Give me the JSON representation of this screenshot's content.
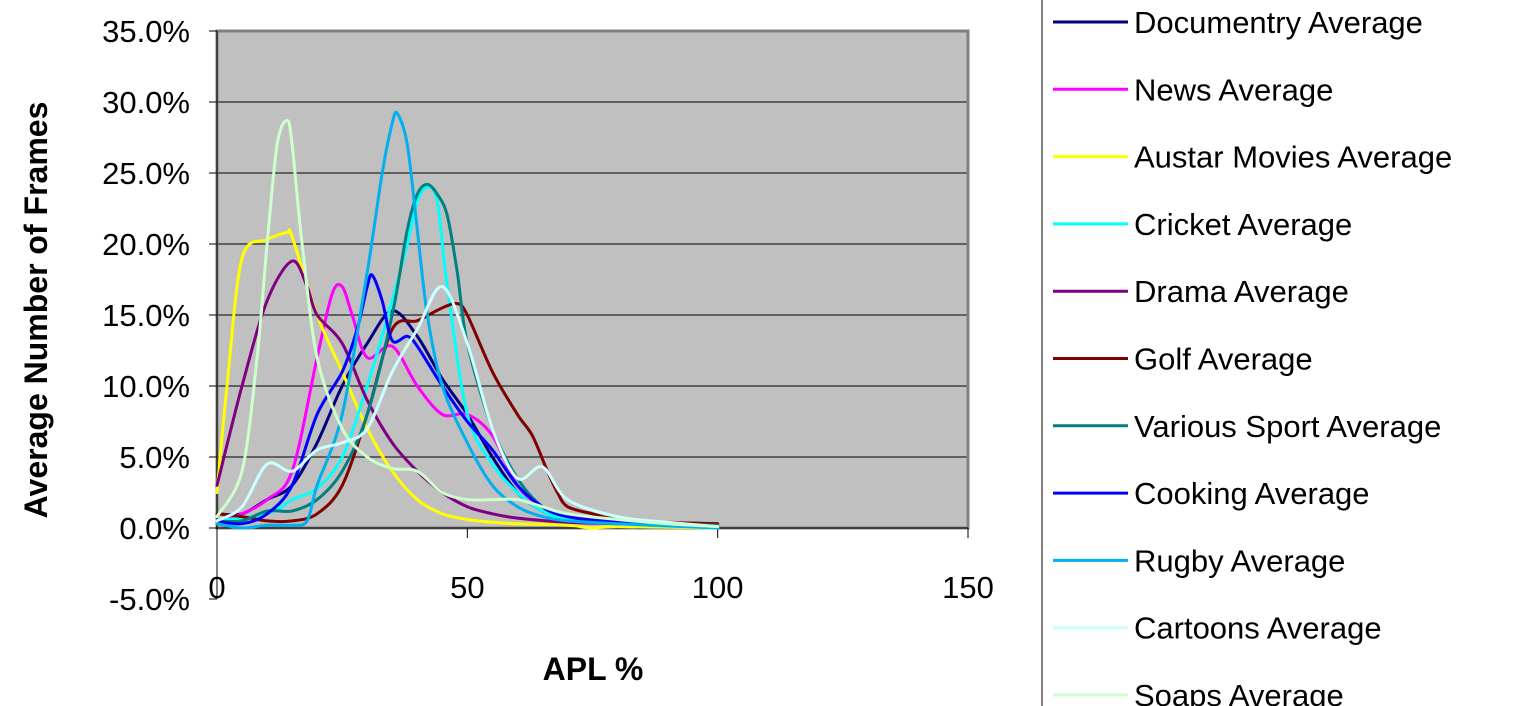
{
  "chart_data": {
    "type": "line",
    "title": "",
    "xlabel": "APL %",
    "ylabel": "Average Number of Frames",
    "xlim": [
      0,
      150
    ],
    "ylim": [
      -5,
      35
    ],
    "x_ticks": [
      0,
      50,
      100,
      150
    ],
    "x_tick_labels": [
      "0",
      "50",
      "100",
      "150"
    ],
    "y_ticks": [
      -5,
      0,
      5,
      10,
      15,
      20,
      25,
      30,
      35
    ],
    "y_tick_labels": [
      "-5.0%",
      "0.0%",
      "5.0%",
      "10.0%",
      "15.0%",
      "20.0%",
      "25.0%",
      "30.0%",
      "35.0%"
    ],
    "grid": "horizontal",
    "legend_placement": "right",
    "background_color": "#c0c0c0",
    "series": [
      {
        "name": "Documentry Average",
        "color": "#000080",
        "points": [
          [
            0,
            1
          ],
          [
            5,
            1
          ],
          [
            10,
            2
          ],
          [
            15,
            3
          ],
          [
            20,
            6
          ],
          [
            25,
            10
          ],
          [
            30,
            13
          ],
          [
            35,
            15.3
          ],
          [
            40,
            13.5
          ],
          [
            45,
            10.5
          ],
          [
            50,
            8
          ],
          [
            55,
            5
          ],
          [
            60,
            2.5
          ],
          [
            65,
            1.2
          ],
          [
            70,
            0.6
          ],
          [
            80,
            0.3
          ],
          [
            90,
            0.2
          ],
          [
            100,
            0.1
          ]
        ]
      },
      {
        "name": "News Average",
        "color": "#ff00ff",
        "points": [
          [
            0,
            0.5
          ],
          [
            5,
            1
          ],
          [
            10,
            2
          ],
          [
            15,
            4
          ],
          [
            20,
            12
          ],
          [
            23,
            16.5
          ],
          [
            25,
            17
          ],
          [
            27,
            15
          ],
          [
            30,
            12
          ],
          [
            35,
            12.8
          ],
          [
            40,
            10
          ],
          [
            45,
            8
          ],
          [
            50,
            8
          ],
          [
            55,
            6.5
          ],
          [
            60,
            3
          ],
          [
            65,
            1.5
          ],
          [
            70,
            0.8
          ],
          [
            80,
            0.4
          ],
          [
            90,
            0.2
          ],
          [
            100,
            0.1
          ]
        ]
      },
      {
        "name": "Austar Movies Average",
        "color": "#ffff00",
        "points": [
          [
            0,
            2.5
          ],
          [
            2,
            10
          ],
          [
            5,
            19
          ],
          [
            10,
            20.3
          ],
          [
            14,
            20.8
          ],
          [
            15,
            20.5
          ],
          [
            20,
            15
          ],
          [
            25,
            11
          ],
          [
            30,
            7
          ],
          [
            35,
            4
          ],
          [
            40,
            2
          ],
          [
            45,
            1
          ],
          [
            50,
            0.6
          ],
          [
            55,
            0.4
          ],
          [
            60,
            0.3
          ],
          [
            70,
            0.2
          ],
          [
            75,
            0
          ],
          [
            80,
            0.1
          ],
          [
            100,
            0
          ]
        ]
      },
      {
        "name": "Cricket Average",
        "color": "#00ffff",
        "points": [
          [
            0,
            0.5
          ],
          [
            10,
            1
          ],
          [
            15,
            2
          ],
          [
            20,
            2.8
          ],
          [
            25,
            5
          ],
          [
            30,
            10
          ],
          [
            35,
            16
          ],
          [
            38,
            20
          ],
          [
            40,
            23
          ],
          [
            42,
            24
          ],
          [
            44,
            23
          ],
          [
            46,
            17
          ],
          [
            50,
            8
          ],
          [
            55,
            4.5
          ],
          [
            60,
            2.5
          ],
          [
            65,
            1.2
          ],
          [
            70,
            0.6
          ],
          [
            80,
            0.3
          ],
          [
            100,
            0
          ]
        ]
      },
      {
        "name": "Drama Average",
        "color": "#800080",
        "points": [
          [
            0,
            3
          ],
          [
            5,
            10
          ],
          [
            10,
            16
          ],
          [
            15,
            18.8
          ],
          [
            18,
            17
          ],
          [
            20,
            15
          ],
          [
            25,
            13
          ],
          [
            30,
            9
          ],
          [
            35,
            6
          ],
          [
            40,
            4
          ],
          [
            45,
            2.5
          ],
          [
            50,
            1.5
          ],
          [
            55,
            1
          ],
          [
            60,
            0.7
          ],
          [
            70,
            0.4
          ],
          [
            80,
            0.3
          ],
          [
            100,
            0.2
          ]
        ]
      },
      {
        "name": "Golf Average",
        "color": "#800000",
        "points": [
          [
            0,
            1
          ],
          [
            5,
            0.8
          ],
          [
            10,
            0.5
          ],
          [
            15,
            0.5
          ],
          [
            20,
            1
          ],
          [
            25,
            3
          ],
          [
            30,
            8
          ],
          [
            35,
            14
          ],
          [
            40,
            14.6
          ],
          [
            45,
            15.5
          ],
          [
            48,
            15.8
          ],
          [
            50,
            15
          ],
          [
            55,
            11
          ],
          [
            60,
            8
          ],
          [
            63,
            6.5
          ],
          [
            66,
            4
          ],
          [
            68,
            2.5
          ],
          [
            70,
            1.5
          ],
          [
            75,
            1
          ],
          [
            80,
            0.6
          ],
          [
            90,
            0.4
          ],
          [
            100,
            0.3
          ]
        ]
      },
      {
        "name": "Various Sport Average",
        "color": "#008080",
        "points": [
          [
            0,
            0.5
          ],
          [
            5,
            0.5
          ],
          [
            10,
            1.2
          ],
          [
            15,
            1.2
          ],
          [
            20,
            2
          ],
          [
            25,
            4
          ],
          [
            30,
            8
          ],
          [
            35,
            15
          ],
          [
            38,
            21
          ],
          [
            40,
            23.5
          ],
          [
            42,
            24.2
          ],
          [
            44,
            23.5
          ],
          [
            46,
            22
          ],
          [
            48,
            18
          ],
          [
            50,
            13
          ],
          [
            55,
            7
          ],
          [
            60,
            3.5
          ],
          [
            65,
            1.5
          ],
          [
            70,
            0.8
          ],
          [
            80,
            0.4
          ],
          [
            100,
            0.2
          ]
        ]
      },
      {
        "name": "Cooking Average",
        "color": "#0000ff",
        "points": [
          [
            0,
            0.5
          ],
          [
            5,
            0.3
          ],
          [
            10,
            1
          ],
          [
            15,
            3
          ],
          [
            20,
            8
          ],
          [
            25,
            11
          ],
          [
            28,
            14
          ],
          [
            30,
            17
          ],
          [
            31,
            17.8
          ],
          [
            33,
            16
          ],
          [
            35,
            13.2
          ],
          [
            38,
            13.5
          ],
          [
            40,
            12.8
          ],
          [
            45,
            10
          ],
          [
            50,
            7.5
          ],
          [
            55,
            5.5
          ],
          [
            60,
            3
          ],
          [
            65,
            1.5
          ],
          [
            70,
            0.8
          ],
          [
            80,
            0.4
          ],
          [
            100,
            0.1
          ]
        ]
      },
      {
        "name": "Rugby Average",
        "color": "#00b0f0",
        "points": [
          [
            0,
            0.3
          ],
          [
            5,
            0
          ],
          [
            10,
            0.2
          ],
          [
            15,
            0.2
          ],
          [
            18,
            0.5
          ],
          [
            20,
            3
          ],
          [
            25,
            8
          ],
          [
            30,
            18
          ],
          [
            33,
            25
          ],
          [
            35,
            28.5
          ],
          [
            36,
            29.2
          ],
          [
            38,
            27
          ],
          [
            40,
            21
          ],
          [
            42,
            15
          ],
          [
            45,
            10
          ],
          [
            50,
            6
          ],
          [
            55,
            3
          ],
          [
            60,
            1.5
          ],
          [
            65,
            0.8
          ],
          [
            70,
            0.5
          ],
          [
            80,
            0.3
          ],
          [
            100,
            0
          ]
        ]
      },
      {
        "name": "Cartoons Average",
        "color": "#ccffff",
        "points": [
          [
            0,
            0.5
          ],
          [
            5,
            1.5
          ],
          [
            10,
            4.5
          ],
          [
            15,
            4
          ],
          [
            20,
            5.5
          ],
          [
            25,
            6
          ],
          [
            30,
            7
          ],
          [
            35,
            11
          ],
          [
            40,
            14
          ],
          [
            45,
            17
          ],
          [
            50,
            13
          ],
          [
            55,
            7
          ],
          [
            60,
            3.5
          ],
          [
            65,
            4.3
          ],
          [
            70,
            2
          ],
          [
            80,
            0.8
          ],
          [
            90,
            0.4
          ],
          [
            100,
            0.1
          ]
        ]
      },
      {
        "name": "Soaps Average",
        "color": "#ccffcc",
        "points": [
          [
            0,
            0.8
          ],
          [
            5,
            4
          ],
          [
            8,
            12
          ],
          [
            10,
            20
          ],
          [
            12,
            27
          ],
          [
            14,
            28.7
          ],
          [
            15,
            27
          ],
          [
            17,
            20
          ],
          [
            20,
            12
          ],
          [
            25,
            7
          ],
          [
            30,
            5
          ],
          [
            35,
            4.2
          ],
          [
            40,
            4
          ],
          [
            45,
            2.5
          ],
          [
            50,
            2
          ],
          [
            55,
            2
          ],
          [
            60,
            2
          ],
          [
            65,
            1.5
          ],
          [
            70,
            1
          ],
          [
            80,
            0.6
          ],
          [
            90,
            0.3
          ],
          [
            100,
            0.1
          ]
        ]
      }
    ]
  }
}
